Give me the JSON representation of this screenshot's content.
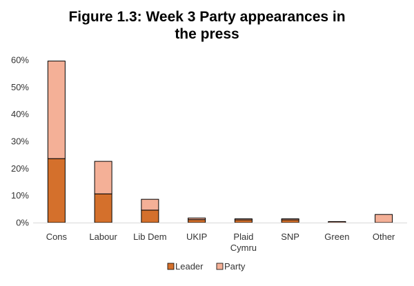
{
  "chart_data": {
    "type": "bar",
    "stacked": true,
    "title_lines": [
      "Figure 1.3: Week 3 Party appearances in",
      "the press"
    ],
    "categories": [
      "Cons",
      "Labour",
      "Lib Dem",
      "UKIP",
      "Plaid Cymru",
      "SNP",
      "Green",
      "Other"
    ],
    "category_lines": [
      [
        "Cons"
      ],
      [
        "Labour"
      ],
      [
        "Lib Dem"
      ],
      [
        "UKIP"
      ],
      [
        "Plaid",
        "Cymru"
      ],
      [
        "SNP"
      ],
      [
        "Green"
      ],
      [
        "Other"
      ]
    ],
    "series": [
      {
        "name": "Leader",
        "color": "#D4702C",
        "values": [
          23.6,
          10.6,
          4.6,
          1.1,
          1.0,
          1.0,
          0.0,
          0.0
        ]
      },
      {
        "name": "Party",
        "color": "#F4B097",
        "values": [
          36.0,
          12.0,
          4.0,
          0.6,
          0.4,
          0.4,
          0.4,
          3.0
        ]
      }
    ],
    "ylim": [
      0,
      60
    ],
    "yticks": [
      0,
      10,
      20,
      30,
      40,
      50,
      60
    ],
    "ytick_labels": [
      "0%",
      "10%",
      "20%",
      "30%",
      "40%",
      "50%",
      "60%"
    ],
    "xlabel": "",
    "ylabel": "",
    "legend_position": "bottom",
    "grid": false
  }
}
